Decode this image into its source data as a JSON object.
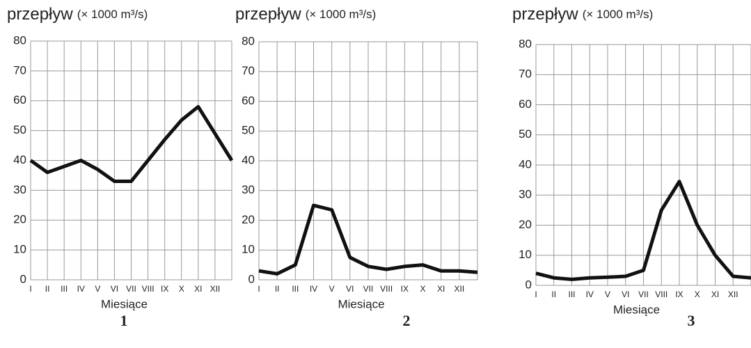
{
  "chart_data": [
    {
      "type": "line",
      "title": "przepływ",
      "unit": "(× 1000 m³/s)",
      "x_label": "Miesiące",
      "label": "1",
      "categories": [
        "I",
        "II",
        "III",
        "IV",
        "V",
        "VI",
        "VII",
        "VIII",
        "IX",
        "X",
        "XI",
        "XII",
        null
      ],
      "values": [
        40,
        36,
        38,
        40,
        37,
        33,
        33,
        40,
        47,
        53.5,
        58,
        49,
        40
      ],
      "color": "#111111",
      "ylim": [
        0,
        80
      ],
      "yticks": [
        0,
        10,
        20,
        30,
        40,
        50,
        60,
        70,
        80
      ],
      "grid": true
    },
    {
      "type": "line",
      "title": "przepływ",
      "unit": "(× 1000 m³/s)",
      "x_label": "Miesiące",
      "label": "2",
      "categories": [
        "I",
        "II",
        "III",
        "IV",
        "V",
        "VI",
        "VII",
        "VIII",
        "IX",
        "X",
        "XI",
        "XII",
        null
      ],
      "values": [
        3,
        2,
        5,
        25,
        23.5,
        7.5,
        4.5,
        3.5,
        4.5,
        5,
        3,
        3,
        2.5
      ],
      "color": "#111111",
      "ylim": [
        0,
        80
      ],
      "yticks": [
        0,
        10,
        20,
        30,
        40,
        50,
        60,
        70,
        80
      ],
      "grid": true
    },
    {
      "type": "line",
      "title": "przepływ",
      "unit": "(× 1000 m³/s)",
      "x_label": "Miesiące",
      "label": "3",
      "categories": [
        "I",
        "II",
        "III",
        "IV",
        "V",
        "VI",
        "VII",
        "VIII",
        "IX",
        "X",
        "XI",
        "XII",
        null
      ],
      "values": [
        4,
        2.5,
        2,
        2.5,
        2.7,
        3,
        5,
        25,
        34.5,
        20,
        10,
        3,
        2.5
      ],
      "color": "#111111",
      "ylim": [
        0,
        80
      ],
      "yticks": [
        0,
        10,
        20,
        30,
        40,
        50,
        60,
        70,
        80
      ],
      "grid": true
    }
  ]
}
